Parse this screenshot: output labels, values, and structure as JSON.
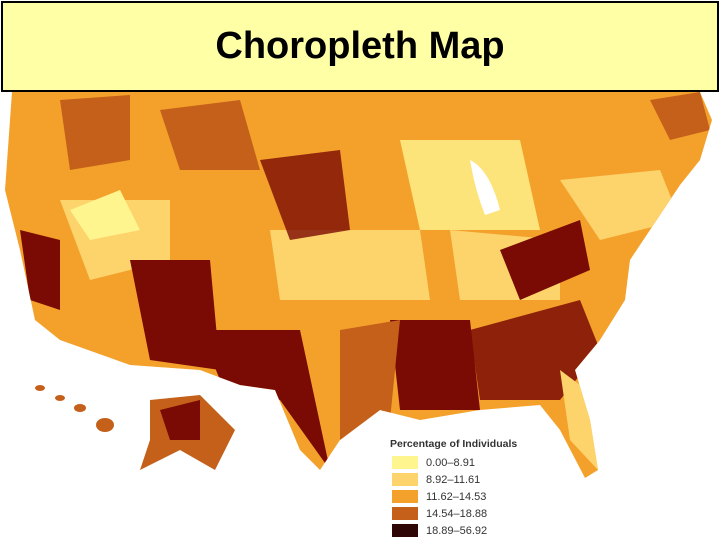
{
  "title": "Choropleth Map",
  "legend": {
    "title": "Percentage of Individuals",
    "items": [
      {
        "label": "0.00–8.91",
        "color": "#fff58e"
      },
      {
        "label": "8.92–11.61",
        "color": "#fdd36b"
      },
      {
        "label": "11.62–14.53",
        "color": "#f4a12c"
      },
      {
        "label": "14.54–18.88",
        "color": "#c4601a"
      },
      {
        "label": "18.89–56.92",
        "color": "#2e0606"
      }
    ]
  }
}
